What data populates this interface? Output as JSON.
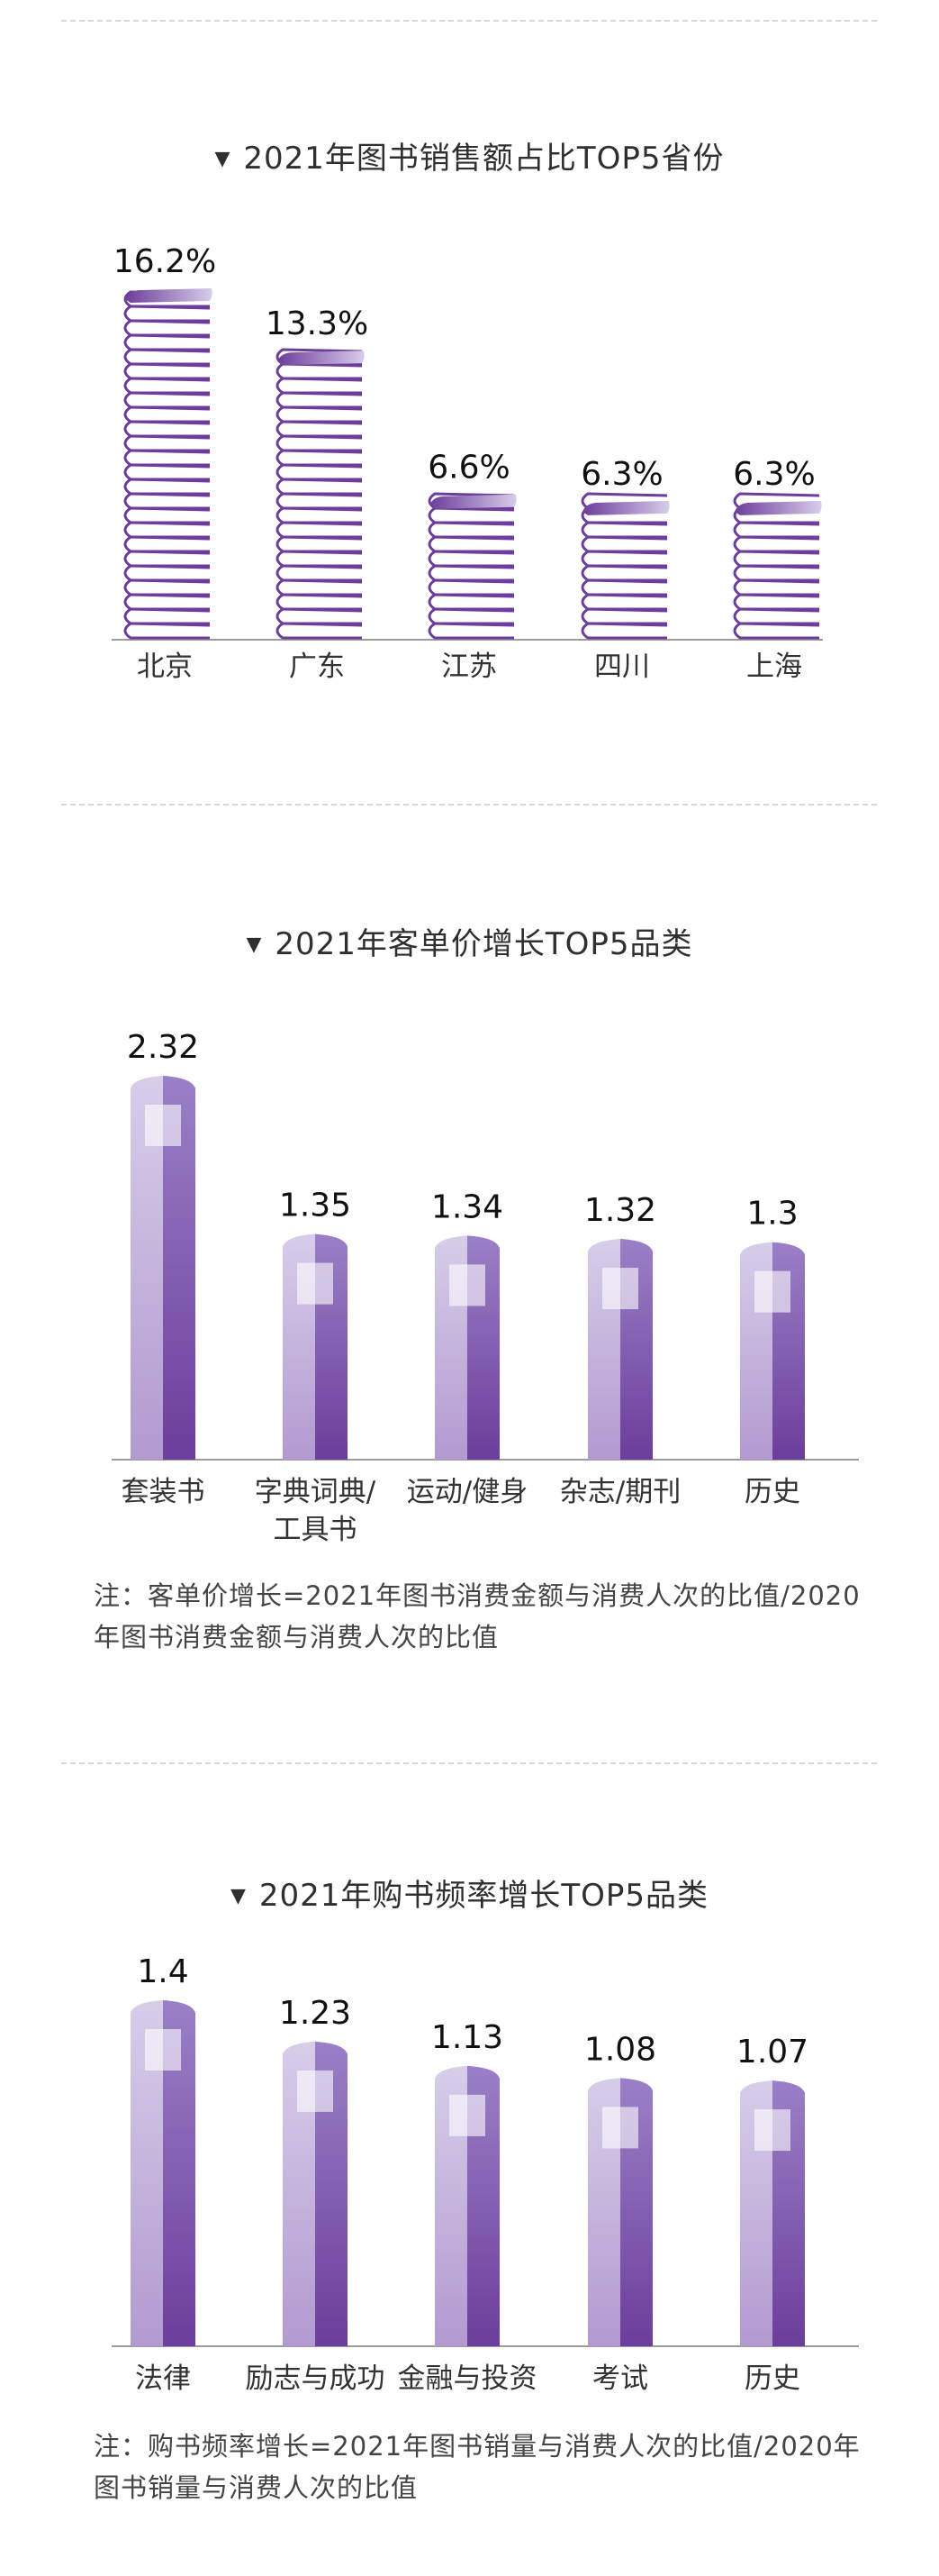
{
  "colors": {
    "purple_dark": "#6c3d9b",
    "purple_mid": "#9a80c6",
    "purple_light": "#d7cde9",
    "axis": "#9c9c9c"
  },
  "charts": [
    {
      "id": "province",
      "title": "2021年图书销售额占比TOP5省份",
      "note": ""
    },
    {
      "id": "price",
      "title": "2021年客单价增长TOP5品类",
      "note": "注：客单价增长=2021年图书消费金额与消费人次的比值/2020年图书消费金额与消费人次的比值"
    },
    {
      "id": "frequency",
      "title": "2021年购书频率增长TOP5品类",
      "note": "注：购书频率增长=2021年图书销量与消费人次的比值/2020年图书销量与消费人次的比值"
    }
  ],
  "chart_data": [
    {
      "type": "bar",
      "title": "2021年图书销售额占比TOP5省份",
      "categories": [
        "北京",
        "广东",
        "江苏",
        "四川",
        "上海"
      ],
      "values": [
        16.2,
        13.3,
        6.6,
        6.3,
        6.3
      ],
      "value_labels": [
        "16.2%",
        "13.3%",
        "6.6%",
        "6.3%",
        "6.3%"
      ],
      "unit": "%",
      "ylim": [
        0,
        16.2
      ],
      "grid": false
    },
    {
      "type": "bar",
      "title": "2021年客单价增长TOP5品类",
      "categories": [
        "套装书",
        "字典词典/工具书",
        "运动/健身",
        "杂志/期刊",
        "历史"
      ],
      "category_lines": [
        [
          "套装书"
        ],
        [
          "字典词典/",
          "工具书"
        ],
        [
          "运动/健身"
        ],
        [
          "杂志/期刊"
        ],
        [
          "历史"
        ]
      ],
      "values": [
        2.32,
        1.35,
        1.34,
        1.32,
        1.3
      ],
      "value_labels": [
        "2.32",
        "1.35",
        "1.34",
        "1.32",
        "1.3"
      ],
      "ylim": [
        0,
        2.32
      ],
      "grid": false
    },
    {
      "type": "bar",
      "title": "2021年购书频率增长TOP5品类",
      "categories": [
        "法律",
        "励志与成功",
        "金融与投资",
        "考试",
        "历史"
      ],
      "category_lines": [
        [
          "法律"
        ],
        [
          "励志与成功"
        ],
        [
          "金融与投资"
        ],
        [
          "考试"
        ],
        [
          "历史"
        ]
      ],
      "values": [
        1.4,
        1.23,
        1.13,
        1.08,
        1.07
      ],
      "value_labels": [
        "1.4",
        "1.23",
        "1.13",
        "1.08",
        "1.07"
      ],
      "ylim": [
        0,
        1.4
      ],
      "grid": false
    }
  ]
}
